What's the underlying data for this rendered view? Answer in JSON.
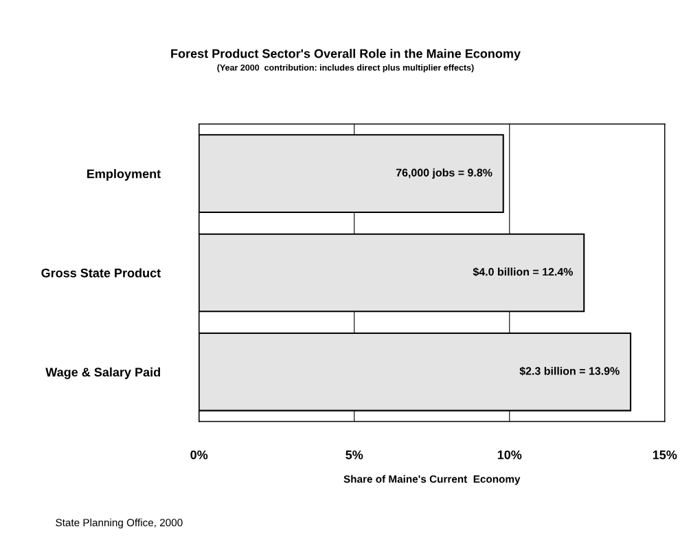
{
  "chart_data": {
    "type": "bar",
    "orientation": "horizontal",
    "title": "Forest Product Sector's Overall Role in the Maine Economy",
    "subtitle": "(Year 2000  contribution: includes direct plus multiplier effects)",
    "xlabel": "Share of Maine's Current  Economy",
    "categories": [
      "Employment",
      "Gross State Product",
      "Wage & Salary Paid"
    ],
    "values": [
      9.8,
      12.4,
      13.9
    ],
    "value_labels": [
      "76,000 jobs = 9.8%",
      "$4.0 billion = 12.4%",
      "$2.3 billion = 13.9%"
    ],
    "color": "#e4e4e4",
    "xlim": [
      0,
      15
    ],
    "xticks": [
      {
        "value": 0,
        "label": "0%"
      },
      {
        "value": 5,
        "label": "5%"
      },
      {
        "value": 10,
        "label": "10%"
      },
      {
        "value": 15,
        "label": "15%"
      }
    ],
    "grid": "x",
    "annotations": [
      "State Planning Office, 2000"
    ]
  }
}
